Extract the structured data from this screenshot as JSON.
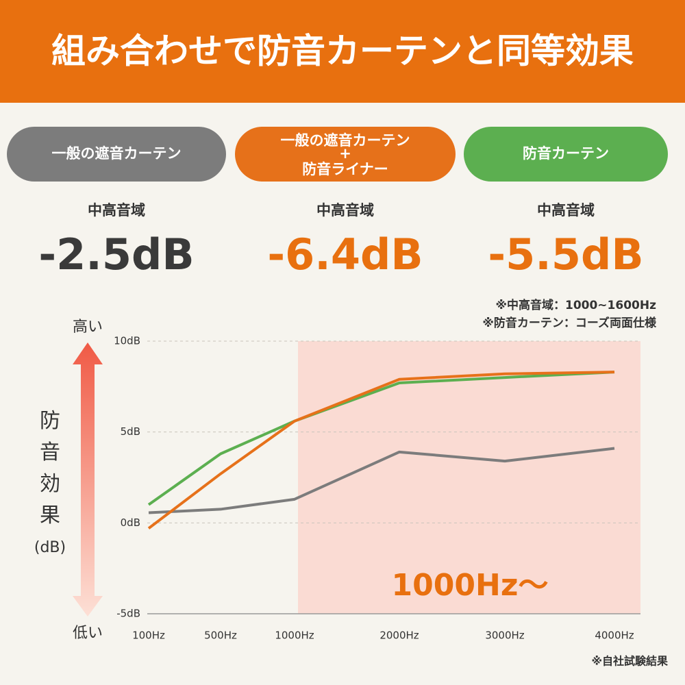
{
  "header": {
    "title": "組み合わせで防音カーテンと同等効果"
  },
  "summary": [
    {
      "range": "中高音域",
      "result": "-2.5dB"
    },
    {
      "range": "中高音域",
      "result": "-6.4dB"
    },
    {
      "range": "中高音域",
      "result": "-5.5dB"
    }
  ],
  "chart_data": {
    "type": "line",
    "y_axis_label": {
      "high": "高い",
      "title": "防音効果",
      "unit": "(dB)",
      "low": "低い"
    },
    "notes": [
      "※中高音域：1000~1600Hz",
      "※防音カーテン：コーズ両面仕様"
    ],
    "annotation": "1000Hz〜",
    "footnote": "※自社試験結果",
    "categories": [
      "100Hz",
      "500Hz",
      "1000Hz",
      "2000Hz",
      "3000Hz",
      "4000Hz"
    ],
    "series": [
      {
        "name": "一般の遮音カーテン",
        "color": "#7c7c7c",
        "values": [
          0.56,
          0.75,
          1.3,
          3.9,
          3.4,
          4.1
        ]
      },
      {
        "name": "一般の遮音カーテン\n+\n防音ライナー",
        "color": "#e6711a",
        "values": [
          -0.3,
          2.7,
          5.6,
          7.9,
          8.2,
          8.3
        ]
      },
      {
        "name": "防音カーテン",
        "color": "#5caf50",
        "values": [
          1.0,
          3.8,
          5.6,
          7.7,
          8.0,
          8.3
        ]
      }
    ],
    "ylim": [
      -5,
      10
    ],
    "yticks": [
      {
        "value": 10,
        "label": "10dB"
      },
      {
        "value": 5,
        "label": "5dB"
      },
      {
        "value": 0,
        "label": "0dB"
      },
      {
        "value": -5,
        "label": "-5dB"
      }
    ],
    "grid": true
  }
}
